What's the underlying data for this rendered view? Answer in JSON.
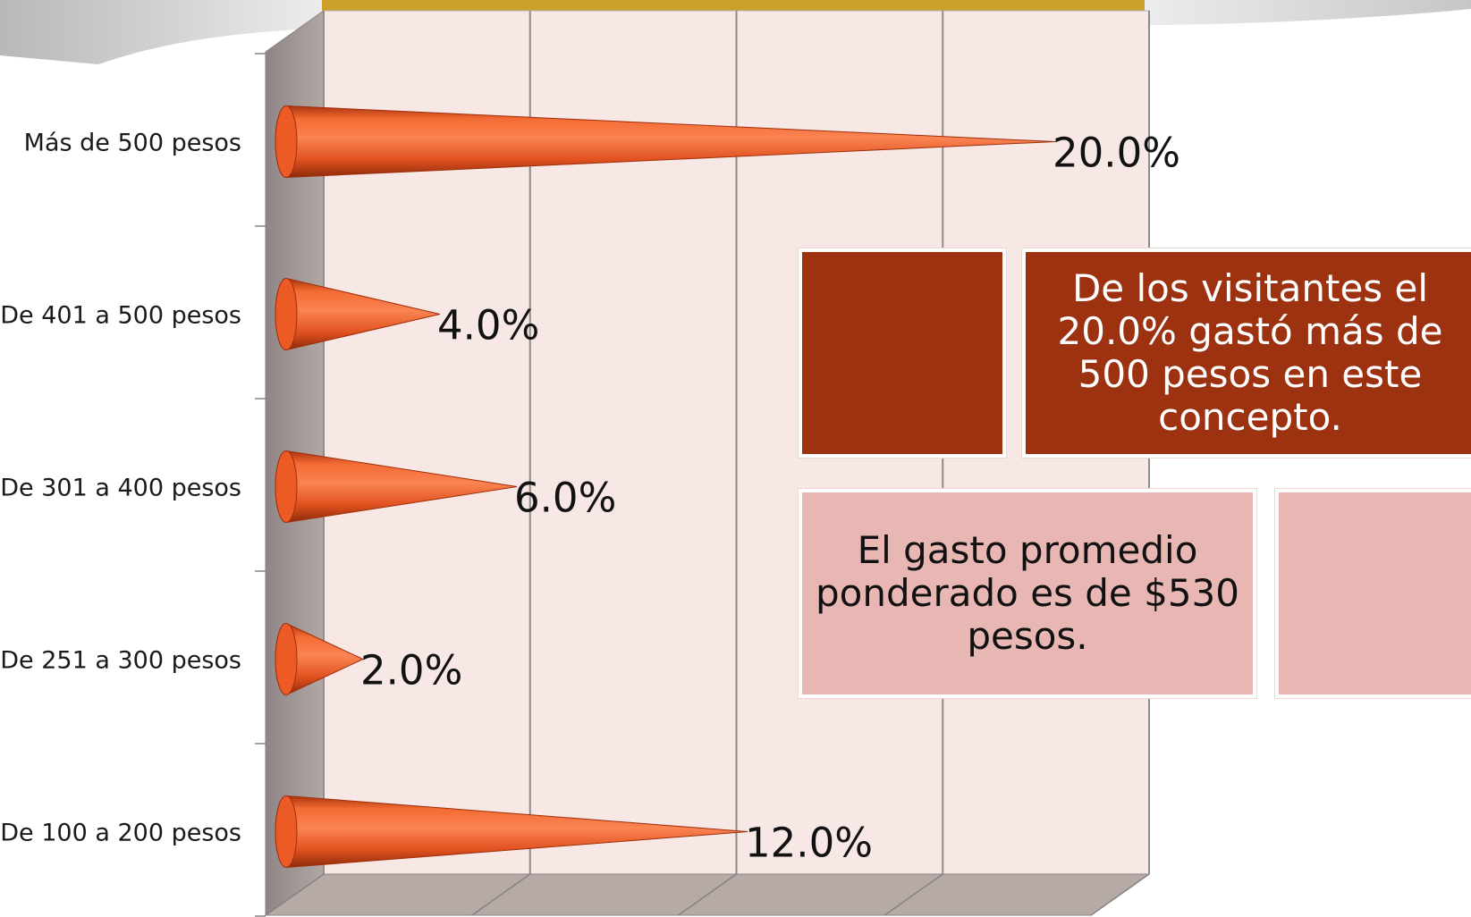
{
  "chart_data": {
    "type": "bar",
    "orientation": "horizontal",
    "style": "3d-cone",
    "categories": [
      "Más de 500 pesos",
      "De 401 a 500 pesos",
      "De 301 a 400 pesos",
      "De 251 a 300 pesos",
      "De 100 a 200 pesos"
    ],
    "values": [
      20.0,
      4.0,
      6.0,
      2.0,
      12.0
    ],
    "data_labels": [
      "20.0%",
      "4.0%",
      "6.0%",
      "2.0%",
      "12.0%"
    ],
    "xlim": [
      0,
      20
    ],
    "x_gridlines": [
      0,
      5,
      10,
      15,
      20
    ],
    "grid": true,
    "legend": "none",
    "colors": {
      "bar": "#ec5a26",
      "bar_shadow": "#9e2f0c",
      "wall_back": "#f7e8e6",
      "wall_side": "#a59a98",
      "floor": "#b6aaa7",
      "gridline": "#8f8b8b"
    }
  },
  "notes": {
    "spend_text": "De los visitantes el 20.0% gastó más de 500 pesos en este concepto.",
    "average_text": "El gasto promedio ponderado es de $530 pesos.",
    "dark_color": "#9c3210",
    "light_color": "#e8b7b3"
  }
}
